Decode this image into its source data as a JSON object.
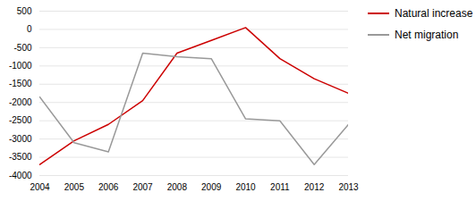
{
  "chart_data": {
    "type": "line",
    "x": [
      2004,
      2005,
      2006,
      2007,
      2008,
      2009,
      2010,
      2011,
      2012,
      2013
    ],
    "series": [
      {
        "name": "Natural increase",
        "color": "#cc0000",
        "values": [
          -3700,
          -3050,
          -2600,
          -1950,
          -650,
          -300,
          50,
          -800,
          -1350,
          -1750
        ]
      },
      {
        "name": "Net migration",
        "color": "#999999",
        "values": [
          -1850,
          -3100,
          -3350,
          -650,
          -750,
          -800,
          -2450,
          -2500,
          -3700,
          -2600
        ]
      }
    ],
    "xlim": [
      2004,
      2013
    ],
    "xticks": [
      2004,
      2005,
      2006,
      2007,
      2008,
      2009,
      2010,
      2011,
      2012,
      2013
    ],
    "ylim": [
      -4000,
      500
    ],
    "yticks": [
      500,
      0,
      -500,
      -1000,
      -1500,
      -2000,
      -2500,
      -3000,
      -3500,
      -4000
    ],
    "grid": true,
    "legend": "right"
  }
}
